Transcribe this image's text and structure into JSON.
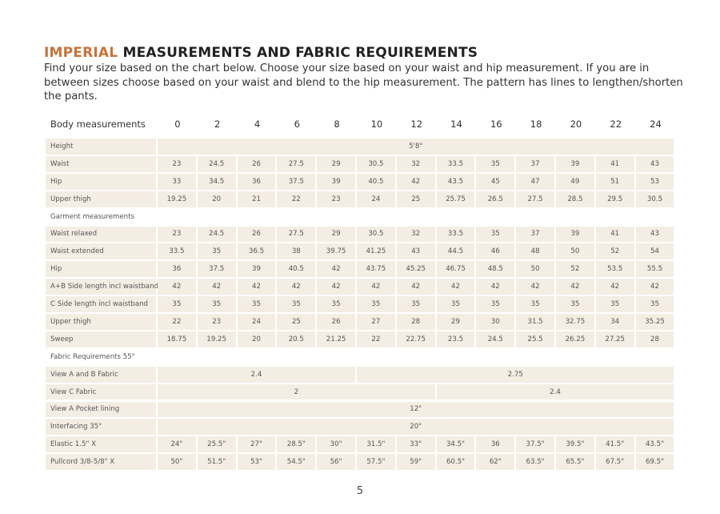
{
  "header": {
    "title_highlight": "IMPERIAL",
    "title": "MEASUREMENTS AND FABRIC REQUIREMENTS",
    "intro": [
      "Find your size based on the chart below. Choose your size based on your waist and hip measurement. If you are in",
      "between sizes choose based on your waist and blend to the hip measurement. The pattern has lines to lengthen/shorten",
      "the pants."
    ]
  },
  "table": {
    "columns": [
      "Body measurements",
      "0",
      "2",
      "4",
      "6",
      "8",
      "10",
      "12",
      "14",
      "16",
      "18",
      "20",
      "22",
      "24"
    ],
    "rows": [
      {
        "label": "Height",
        "cells": [
          "5'8\""
        ]
      },
      {
        "label": "Waist",
        "cells": [
          "23",
          "24.5",
          "26",
          "27.5",
          "29",
          "30.5",
          "32",
          "33.5",
          "35",
          "37",
          "39",
          "41",
          "43"
        ]
      },
      {
        "label": "Hip",
        "cells": [
          "33",
          "34.5",
          "36",
          "37.5",
          "39",
          "40.5",
          "42",
          "43.5",
          "45",
          "47",
          "49",
          "51",
          "53"
        ]
      },
      {
        "label": "Upper thigh",
        "cells": [
          "19.25",
          "20",
          "21",
          "22",
          "23",
          "24",
          "25",
          "25.75",
          "26.5",
          "27.5",
          "28.5",
          "29.5",
          "30.5"
        ]
      },
      {
        "label": "Garment measurements",
        "cells": []
      },
      {
        "label": "Waist relaxed",
        "cells": [
          "23",
          "24.5",
          "26",
          "27.5",
          "29",
          "30.5",
          "32",
          "33.5",
          "35",
          "37",
          "39",
          "41",
          "43"
        ]
      },
      {
        "label": "Waist extended",
        "cells": [
          "33.5",
          "35",
          "36.5",
          "38",
          "39.75",
          "41.25",
          "43",
          "44.5",
          "46",
          "48",
          "50",
          "52",
          "54"
        ]
      },
      {
        "label": "Hip",
        "cells": [
          "36",
          "37.5",
          "39",
          "40.5",
          "42",
          "43.75",
          "45.25",
          "46.75",
          "48.5",
          "50",
          "52",
          "53.5",
          "55.5"
        ]
      },
      {
        "label": "A+B Side length incl waistband",
        "cells": [
          "42",
          "42",
          "42",
          "42",
          "42",
          "42",
          "42",
          "42",
          "42",
          "42",
          "42",
          "42",
          "42"
        ]
      },
      {
        "label": "C Side length incl waistband",
        "cells": [
          "35",
          "35",
          "35",
          "35",
          "35",
          "35",
          "35",
          "35",
          "35",
          "35",
          "35",
          "35",
          "35"
        ]
      },
      {
        "label": "Upper thigh",
        "cells": [
          "22",
          "23",
          "24",
          "25",
          "26",
          "27",
          "28",
          "29",
          "30",
          "31.5",
          "32.75",
          "34",
          "35.25"
        ]
      },
      {
        "label": "Sweep",
        "cells": [
          "18.75",
          "19.25",
          "20",
          "20.5",
          "21.25",
          "22",
          "22.75",
          "23.5",
          "24.5",
          "25.5",
          "26.25",
          "27.25",
          "28"
        ]
      },
      {
        "label": "Fabric Requirements 55\"",
        "cells": []
      },
      {
        "label": "View A  and B Fabric",
        "cells": [
          "2.4",
          "2.75"
        ]
      },
      {
        "label": "View C Fabric",
        "cells": [
          "2",
          "2.4"
        ]
      },
      {
        "label": "View A Pocket lining",
        "cells": [
          "12\""
        ]
      },
      {
        "label": "Interfacing 35\"",
        "cells": [
          "20\""
        ]
      },
      {
        "label": "Elastic  1.5\" X",
        "cells": [
          "24\"",
          "25.5\"",
          "27\"",
          "28.5\"",
          "30\"",
          "31.5\"",
          "33\"",
          "34.5\"",
          "36",
          "37.5\"",
          "39.5\"",
          "41.5\"",
          "43.5\""
        ]
      },
      {
        "label": "Pullcord 3/8-5/8\" X",
        "cells": [
          "50\"",
          "51.5\"",
          "53\"",
          "54.5\"",
          "56\"",
          "57.5\"",
          "59\"",
          "60.5\"",
          "62\"",
          "63.5\"",
          "65.5\"",
          "67.5\"",
          "69.5\""
        ]
      }
    ]
  },
  "footer": {
    "page": "5"
  }
}
